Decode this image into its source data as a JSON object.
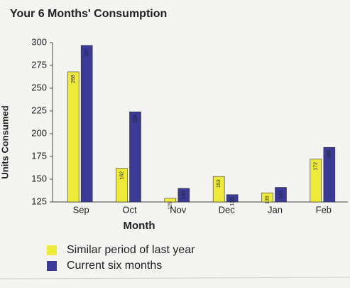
{
  "chart_data": {
    "type": "bar",
    "title": "Your 6 Months' Consumption",
    "xlabel": "Month",
    "ylabel": "Units Consumed",
    "categories": [
      "Sep",
      "Oct",
      "Nov",
      "Dec",
      "Jan",
      "Feb"
    ],
    "series": [
      {
        "name": "Similar period of last year",
        "color": "#eeea3c",
        "values": [
          268,
          162,
          129,
          153,
          135,
          172
        ]
      },
      {
        "name": "Current six months",
        "color": "#3b3a96",
        "values": [
          297,
          224,
          140,
          133,
          141,
          185
        ]
      }
    ],
    "ylim": [
      125,
      300
    ],
    "yticks": [
      125,
      150,
      175,
      200,
      225,
      250,
      275,
      300
    ]
  }
}
